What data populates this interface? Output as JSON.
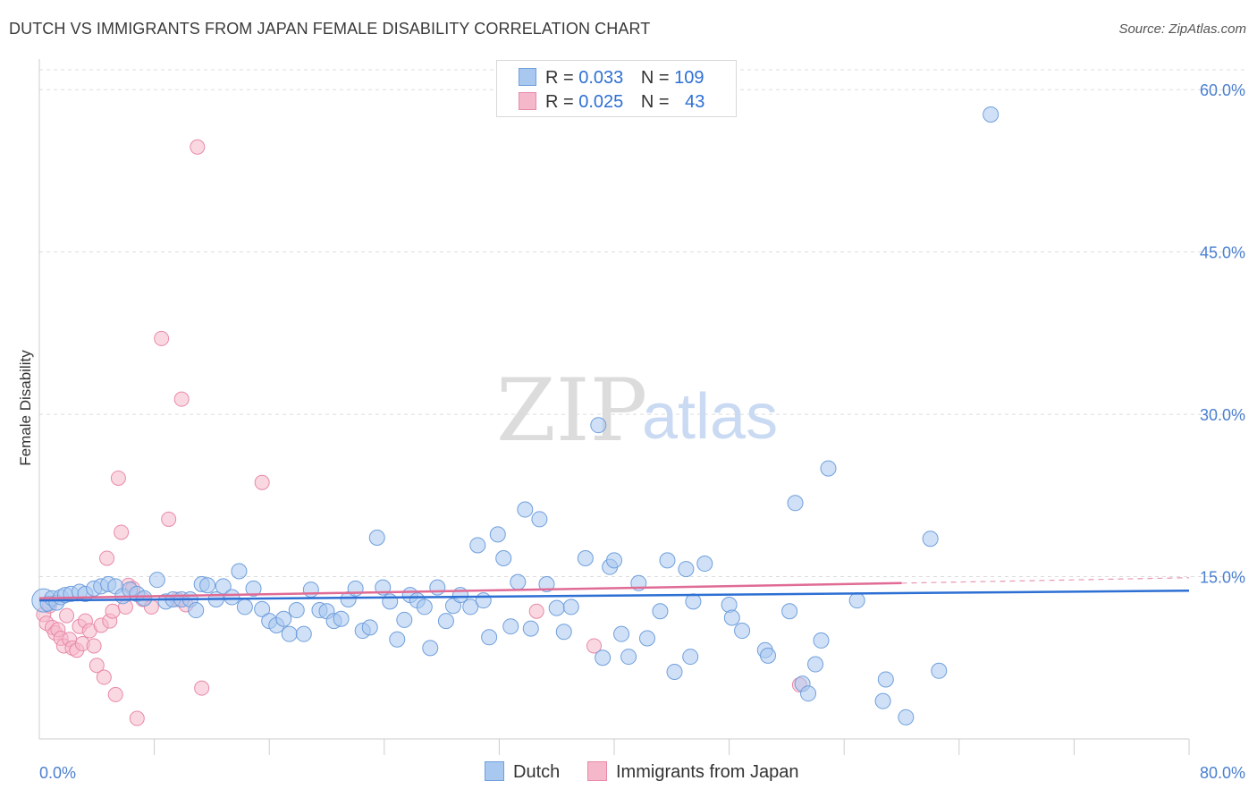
{
  "title": "DUTCH VS IMMIGRANTS FROM JAPAN FEMALE DISABILITY CORRELATION CHART",
  "source": "Source: ZipAtlas.com",
  "watermark": {
    "zip": "ZIP",
    "atlas": "atlas"
  },
  "legend": {
    "rows": [
      {
        "r_label": "R =",
        "r_value": "0.033",
        "n_label": "N =",
        "n_value": "109"
      },
      {
        "r_label": "R =",
        "r_value": "0.025",
        "n_label": "N =",
        "n_value": "43"
      }
    ]
  },
  "bottom_legend": {
    "dutch": "Dutch",
    "japan": "Immigrants from Japan"
  },
  "colors": {
    "dutch_fill": "#a9c8f0",
    "dutch_stroke": "#6f9fdc",
    "dutch_line": "#2d6fd3",
    "japan_fill": "#f5b8cb",
    "japan_stroke": "#e88aa8",
    "japan_line": "#e06b95",
    "tick_text": "#4a7fd0",
    "grid": "#dddddd"
  },
  "chart_data": {
    "type": "scatter",
    "title": "DUTCH VS IMMIGRANTS FROM JAPAN FEMALE DISABILITY CORRELATION CHART",
    "xlabel": "",
    "ylabel": "Female Disability",
    "xlim": [
      0,
      80
    ],
    "ylim": [
      0,
      62
    ],
    "x_tick_labels": [
      "0.0%",
      "80.0%"
    ],
    "y_ticks": [
      {
        "value": 15,
        "label": "15.0%"
      },
      {
        "value": 30,
        "label": "30.0%"
      },
      {
        "value": 45,
        "label": "45.0%"
      },
      {
        "value": 60,
        "label": "60.0%"
      }
    ],
    "grid": "horizontal dashed",
    "legend_placement": "top-center",
    "series": [
      {
        "name": "Dutch",
        "r": 0.033,
        "n": 109,
        "trend": {
          "x": [
            0,
            80
          ],
          "y": [
            12.8,
            13.7
          ]
        },
        "points": [
          [
            0.3,
            12.8
          ],
          [
            0.6,
            12.5
          ],
          [
            0.9,
            13.0
          ],
          [
            1.2,
            12.6
          ],
          [
            1.5,
            13.1
          ],
          [
            1.8,
            13.3
          ],
          [
            2.2,
            13.4
          ],
          [
            2.8,
            13.6
          ],
          [
            3.2,
            13.4
          ],
          [
            3.8,
            13.9
          ],
          [
            4.3,
            14.1
          ],
          [
            4.8,
            14.3
          ],
          [
            5.3,
            14.1
          ],
          [
            5.8,
            13.2
          ],
          [
            6.3,
            13.8
          ],
          [
            6.8,
            13.4
          ],
          [
            7.3,
            13.0
          ],
          [
            8.2,
            14.7
          ],
          [
            8.8,
            12.7
          ],
          [
            9.3,
            12.9
          ],
          [
            9.9,
            12.9
          ],
          [
            10.5,
            12.9
          ],
          [
            10.9,
            11.9
          ],
          [
            11.3,
            14.3
          ],
          [
            11.7,
            14.2
          ],
          [
            12.3,
            12.9
          ],
          [
            12.8,
            14.1
          ],
          [
            13.4,
            13.1
          ],
          [
            13.9,
            15.5
          ],
          [
            14.3,
            12.2
          ],
          [
            14.9,
            13.9
          ],
          [
            15.5,
            12.0
          ],
          [
            16.0,
            10.9
          ],
          [
            16.5,
            10.5
          ],
          [
            17.0,
            11.1
          ],
          [
            17.4,
            9.7
          ],
          [
            17.9,
            11.9
          ],
          [
            18.4,
            9.7
          ],
          [
            18.9,
            13.8
          ],
          [
            19.5,
            11.9
          ],
          [
            20.0,
            11.8
          ],
          [
            20.5,
            10.9
          ],
          [
            21.0,
            11.1
          ],
          [
            21.5,
            12.9
          ],
          [
            22.0,
            13.9
          ],
          [
            22.5,
            10.0
          ],
          [
            23.0,
            10.3
          ],
          [
            23.5,
            18.6
          ],
          [
            23.9,
            14.0
          ],
          [
            24.4,
            12.7
          ],
          [
            24.9,
            9.2
          ],
          [
            25.4,
            11.0
          ],
          [
            25.8,
            13.3
          ],
          [
            26.3,
            12.8
          ],
          [
            26.8,
            12.2
          ],
          [
            27.2,
            8.4
          ],
          [
            27.7,
            14.0
          ],
          [
            28.3,
            10.9
          ],
          [
            28.8,
            12.3
          ],
          [
            29.3,
            13.3
          ],
          [
            30.0,
            12.2
          ],
          [
            30.5,
            17.9
          ],
          [
            30.9,
            12.8
          ],
          [
            31.3,
            9.4
          ],
          [
            31.9,
            18.9
          ],
          [
            32.3,
            16.7
          ],
          [
            32.8,
            10.4
          ],
          [
            33.3,
            14.5
          ],
          [
            33.8,
            21.2
          ],
          [
            34.2,
            10.2
          ],
          [
            34.8,
            20.3
          ],
          [
            35.3,
            14.3
          ],
          [
            36.0,
            12.1
          ],
          [
            36.5,
            9.9
          ],
          [
            37.0,
            12.2
          ],
          [
            38.0,
            16.7
          ],
          [
            38.9,
            29.0
          ],
          [
            39.2,
            7.5
          ],
          [
            39.7,
            15.9
          ],
          [
            40.0,
            16.5
          ],
          [
            40.5,
            9.7
          ],
          [
            41.0,
            7.6
          ],
          [
            41.7,
            14.4
          ],
          [
            42.3,
            9.3
          ],
          [
            43.2,
            11.8
          ],
          [
            43.7,
            16.5
          ],
          [
            44.2,
            6.2
          ],
          [
            45.0,
            15.7
          ],
          [
            45.3,
            7.6
          ],
          [
            45.5,
            12.7
          ],
          [
            46.3,
            16.2
          ],
          [
            48.0,
            12.4
          ],
          [
            48.2,
            11.2
          ],
          [
            48.9,
            10.0
          ],
          [
            50.5,
            8.2
          ],
          [
            50.7,
            7.7
          ],
          [
            52.2,
            11.8
          ],
          [
            52.6,
            21.8
          ],
          [
            53.1,
            5.1
          ],
          [
            53.5,
            4.2
          ],
          [
            54.0,
            6.9
          ],
          [
            54.4,
            9.1
          ],
          [
            54.9,
            25.0
          ],
          [
            56.9,
            12.8
          ],
          [
            58.7,
            3.5
          ],
          [
            58.9,
            5.5
          ],
          [
            60.3,
            2.0
          ],
          [
            62.0,
            18.5
          ],
          [
            62.6,
            6.3
          ],
          [
            66.2,
            57.7
          ]
        ]
      },
      {
        "name": "Immigrants from Japan",
        "r": 0.025,
        "n": 43,
        "trend": {
          "x": [
            0,
            60
          ],
          "y": [
            13.0,
            14.4
          ]
        },
        "trend_dashed": {
          "x": [
            60,
            80
          ],
          "y": [
            14.4,
            14.9
          ]
        },
        "points": [
          [
            0.3,
            11.5
          ],
          [
            0.5,
            10.7
          ],
          [
            0.7,
            12.3
          ],
          [
            0.9,
            10.3
          ],
          [
            1.1,
            9.8
          ],
          [
            1.3,
            10.1
          ],
          [
            1.5,
            9.3
          ],
          [
            1.7,
            8.6
          ],
          [
            1.9,
            11.4
          ],
          [
            2.1,
            9.2
          ],
          [
            2.3,
            8.4
          ],
          [
            2.6,
            8.2
          ],
          [
            2.8,
            10.4
          ],
          [
            3.0,
            8.8
          ],
          [
            3.2,
            10.9
          ],
          [
            3.5,
            10.0
          ],
          [
            3.8,
            8.6
          ],
          [
            4.0,
            6.8
          ],
          [
            4.3,
            10.5
          ],
          [
            4.5,
            5.7
          ],
          [
            4.7,
            16.7
          ],
          [
            4.9,
            10.9
          ],
          [
            5.1,
            11.8
          ],
          [
            5.3,
            4.1
          ],
          [
            5.5,
            24.1
          ],
          [
            5.7,
            19.1
          ],
          [
            6.0,
            12.2
          ],
          [
            6.2,
            14.2
          ],
          [
            6.5,
            13.9
          ],
          [
            6.8,
            1.9
          ],
          [
            7.2,
            12.9
          ],
          [
            7.8,
            12.2
          ],
          [
            8.5,
            37.0
          ],
          [
            9.0,
            20.3
          ],
          [
            9.6,
            12.9
          ],
          [
            9.9,
            31.4
          ],
          [
            10.2,
            12.4
          ],
          [
            11.0,
            54.7
          ],
          [
            11.3,
            4.7
          ],
          [
            15.5,
            23.7
          ],
          [
            34.6,
            11.8
          ],
          [
            38.6,
            8.6
          ],
          [
            52.9,
            5.0
          ]
        ]
      }
    ]
  }
}
